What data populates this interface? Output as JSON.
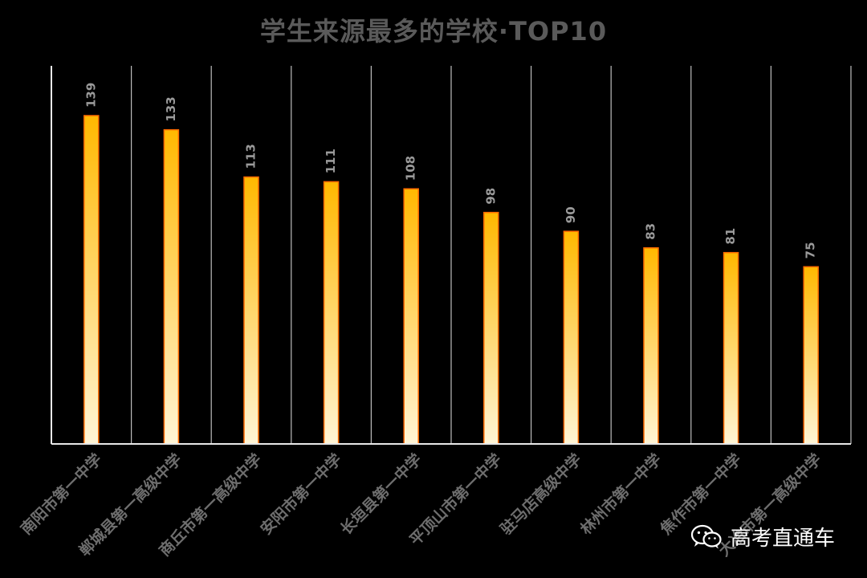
{
  "chart_data": {
    "type": "bar",
    "title": "学生来源最多的学校·TOP10",
    "categories": [
      "南阳市第一中学",
      "郸城县第一高级中学",
      "商丘市第一高级中学",
      "安阳市第一中学",
      "长垣县第一中学",
      "平顶山市第一中学",
      "驻马店高级中学",
      "林州市第一中学",
      "焦作市第一中学",
      "大冶市第一高级中学"
    ],
    "values": [
      139,
      133,
      113,
      111,
      108,
      98,
      90,
      83,
      81,
      75
    ],
    "xlabel": "",
    "ylabel": "",
    "ylim": [
      0,
      145
    ],
    "grid": "vertical separators",
    "legend": "none",
    "colors": {
      "bar_top": "#ffb800",
      "bar_bottom": "#fff5d6",
      "bar_stroke": "#ff6a00",
      "value_label": "#9a9a9a",
      "category_label": "#6e6e6e",
      "axis": "#e8e8e8",
      "separator": "#bdbdbd",
      "title": "#5a5a5a",
      "background": "#000000"
    }
  },
  "watermark": {
    "icon": "wechat-icon",
    "text": "高考直通车"
  }
}
